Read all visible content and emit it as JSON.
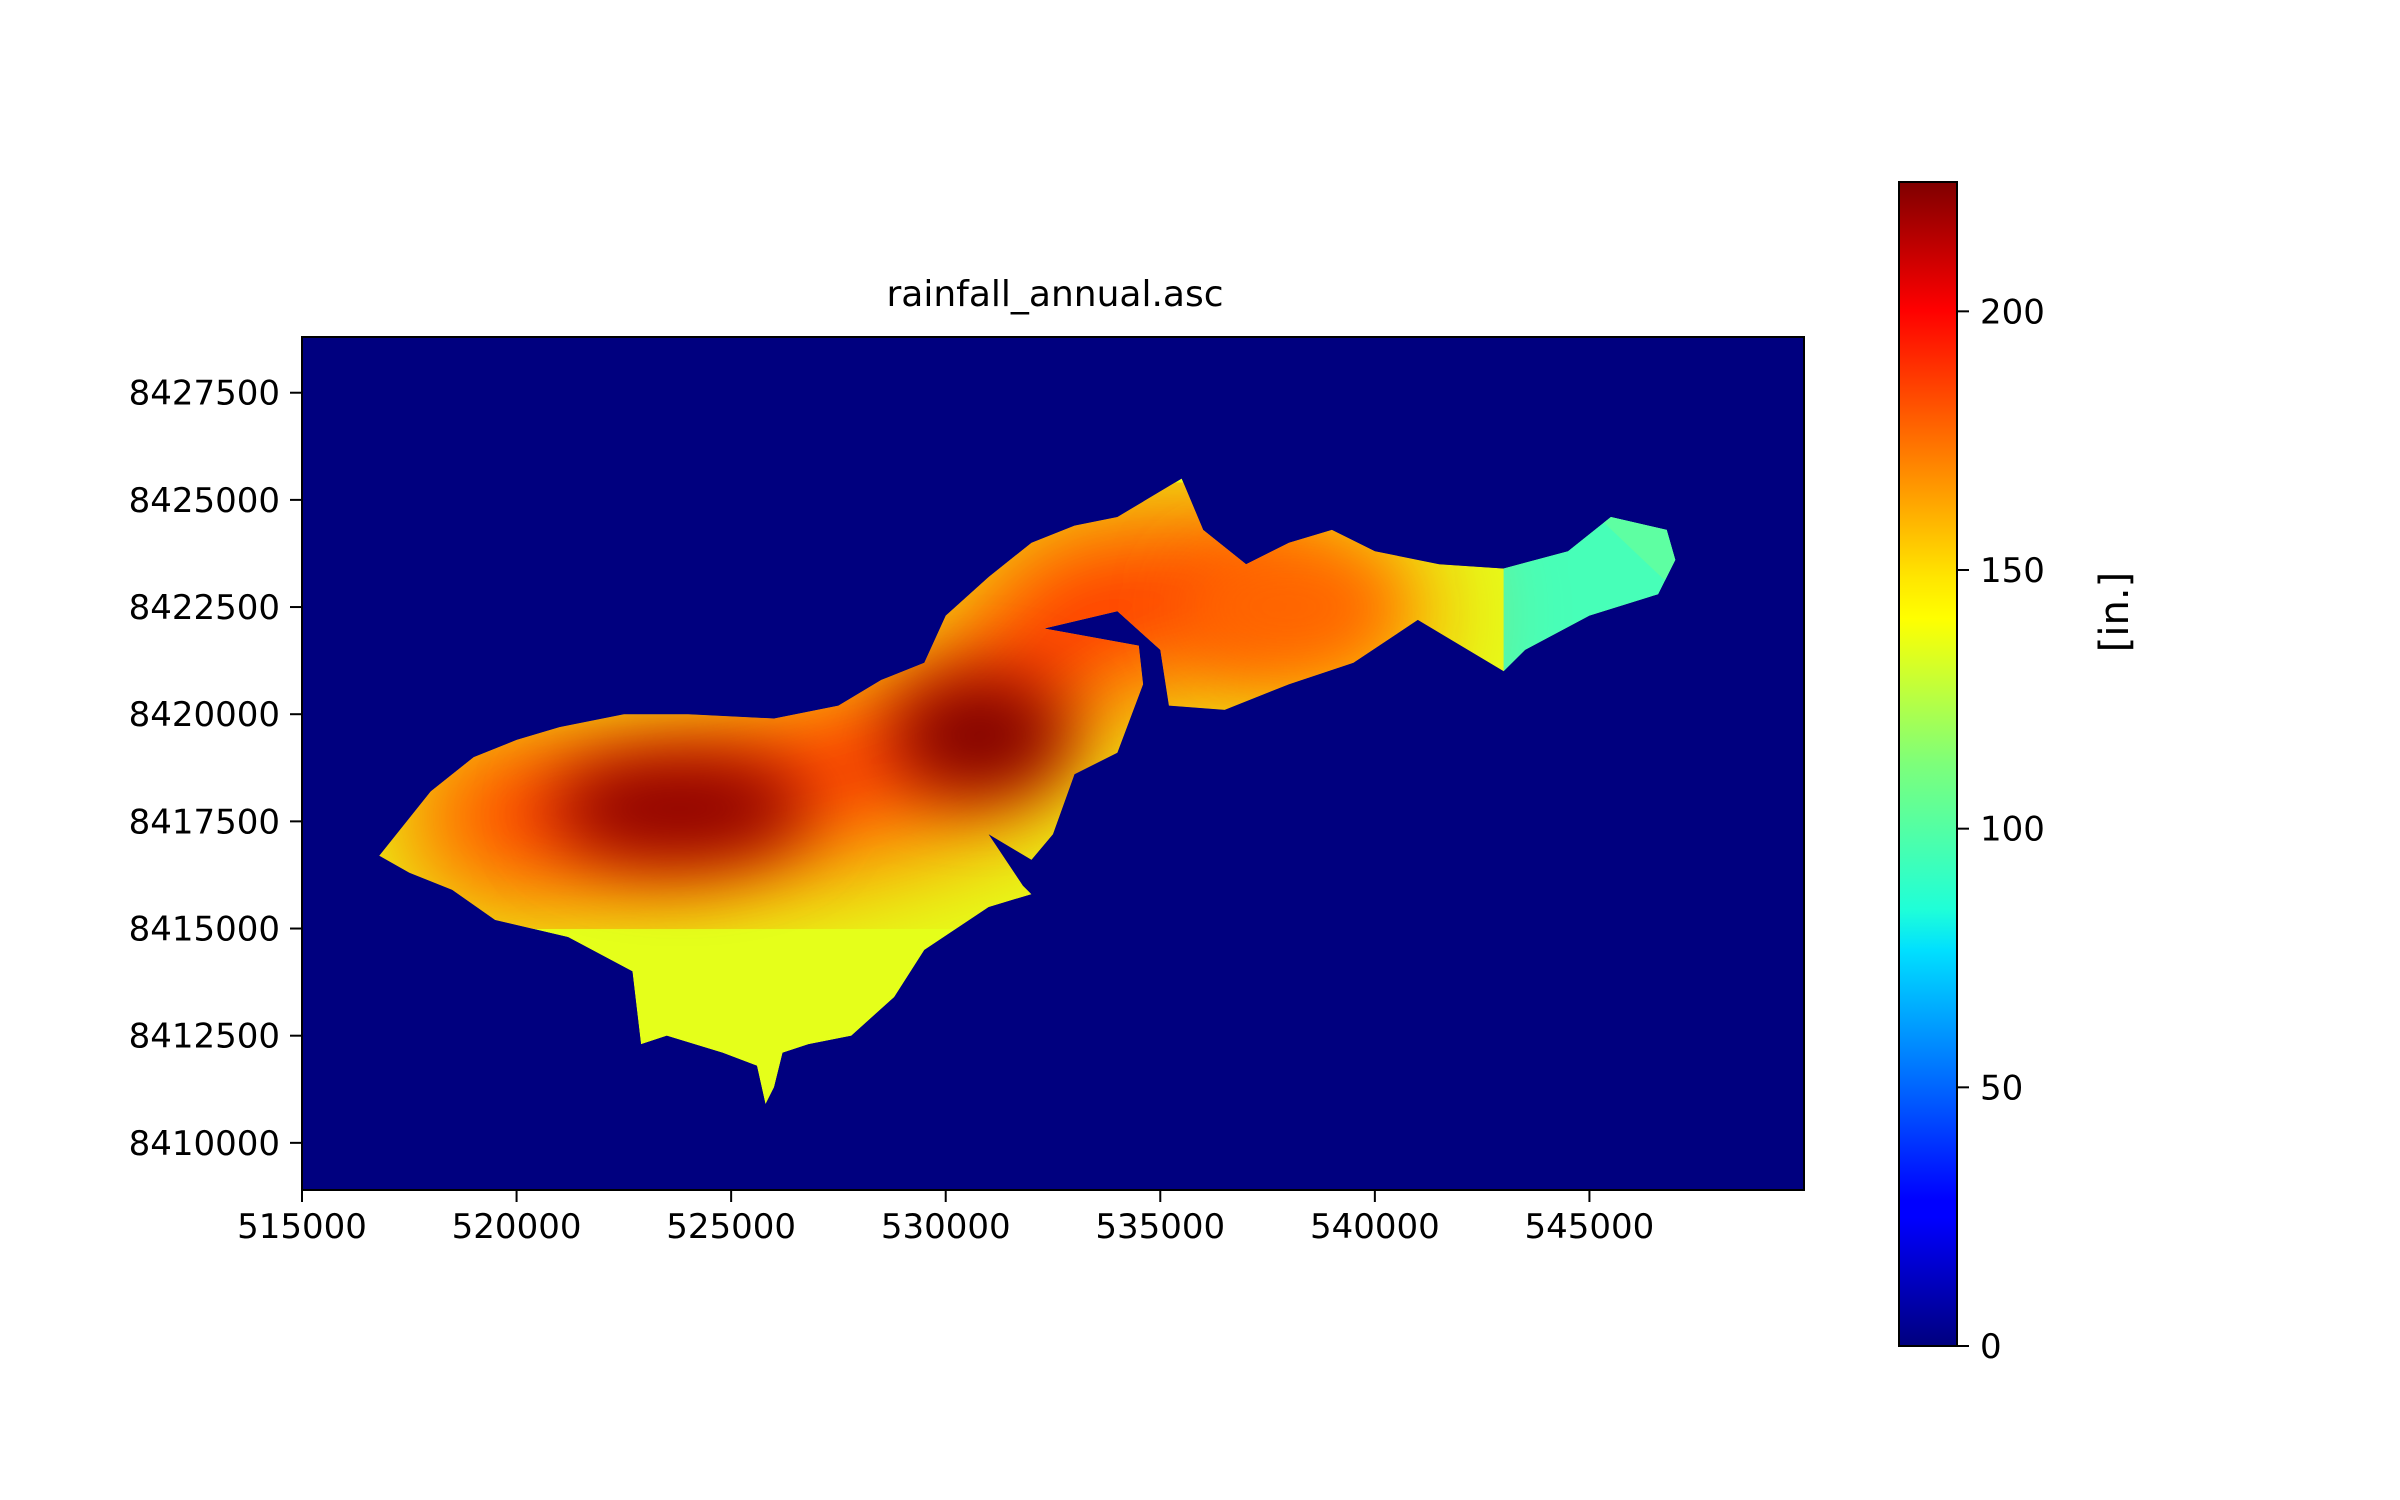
{
  "chart_data": {
    "type": "heatmap",
    "title": "rainfall_annual.asc",
    "xlabel": "",
    "ylabel": "",
    "xlim": [
      515000,
      550000
    ],
    "ylim": [
      8408900,
      8428800
    ],
    "xticks": [
      515000,
      520000,
      525000,
      530000,
      535000,
      540000,
      545000
    ],
    "xtick_labels": [
      "515000",
      "520000",
      "525000",
      "530000",
      "535000",
      "540000",
      "545000"
    ],
    "yticks": [
      8410000,
      8412500,
      8415000,
      8417500,
      8420000,
      8422500,
      8425000,
      8427500
    ],
    "ytick_labels": [
      "8410000",
      "8412500",
      "8415000",
      "8417500",
      "8420000",
      "8422500",
      "8425000",
      "8427500"
    ],
    "colormap": "jet",
    "background_color": "#00007f",
    "colorbar": {
      "label": "[in.]",
      "vmin": 0,
      "vmax": 225,
      "ticks": [
        0,
        50,
        100,
        150,
        200
      ],
      "tick_labels": [
        "0",
        "50",
        "100",
        "150",
        "200"
      ]
    },
    "grid": false,
    "land_outline": [
      [
        516800,
        8416700
      ],
      [
        518000,
        8418200
      ],
      [
        519000,
        8419000
      ],
      [
        520000,
        8419400
      ],
      [
        521000,
        8419700
      ],
      [
        522500,
        8420000
      ],
      [
        524000,
        8420000
      ],
      [
        526000,
        8419900
      ],
      [
        527500,
        8420200
      ],
      [
        528500,
        8420800
      ],
      [
        529500,
        8421200
      ],
      [
        530000,
        8422300
      ],
      [
        531000,
        8423200
      ],
      [
        532000,
        8424000
      ],
      [
        533000,
        8424400
      ],
      [
        534000,
        8424600
      ],
      [
        535500,
        8425500
      ],
      [
        536000,
        8424300
      ],
      [
        537000,
        8423500
      ],
      [
        538000,
        8424000
      ],
      [
        539000,
        8424300
      ],
      [
        540000,
        8423800
      ],
      [
        541500,
        8423500
      ],
      [
        543000,
        8423400
      ],
      [
        544500,
        8423800
      ],
      [
        545500,
        8424600
      ],
      [
        546800,
        8424300
      ],
      [
        547000,
        8423600
      ],
      [
        546600,
        8422800
      ],
      [
        545000,
        8422300
      ],
      [
        543500,
        8421500
      ],
      [
        543000,
        8421000
      ],
      [
        541000,
        8422200
      ],
      [
        539500,
        8421200
      ],
      [
        538000,
        8420700
      ],
      [
        536500,
        8420100
      ],
      [
        535200,
        8420200
      ],
      [
        535000,
        8421500
      ],
      [
        534000,
        8422400
      ],
      [
        532300,
        8422000
      ],
      [
        534500,
        8421600
      ],
      [
        534600,
        8420700
      ],
      [
        534000,
        8419100
      ],
      [
        533000,
        8418600
      ],
      [
        532500,
        8417200
      ],
      [
        532000,
        8416600
      ],
      [
        531000,
        8417200
      ],
      [
        531800,
        8416000
      ],
      [
        532000,
        8415800
      ],
      [
        531000,
        8415500
      ],
      [
        529500,
        8414500
      ],
      [
        528800,
        8413400
      ],
      [
        527800,
        8412500
      ],
      [
        526800,
        8412300
      ],
      [
        526200,
        8412100
      ],
      [
        526000,
        8411300
      ],
      [
        525800,
        8410900
      ],
      [
        525600,
        8411800
      ],
      [
        524800,
        8412100
      ],
      [
        523500,
        8412500
      ],
      [
        522900,
        8412300
      ],
      [
        522700,
        8414000
      ],
      [
        521200,
        8414800
      ],
      [
        519500,
        8415200
      ],
      [
        518500,
        8415900
      ],
      [
        517500,
        8416300
      ]
    ],
    "hotspots": [
      {
        "x": 530800,
        "y": 8419500,
        "value": 225
      },
      {
        "x": 523800,
        "y": 8417800,
        "value": 222
      },
      {
        "x": 538000,
        "y": 8422500,
        "value": 175
      }
    ],
    "cooler_region": {
      "from_x": 543000,
      "value": 100,
      "note_values": [
        95,
        105
      ]
    },
    "base_land_value": 135
  }
}
